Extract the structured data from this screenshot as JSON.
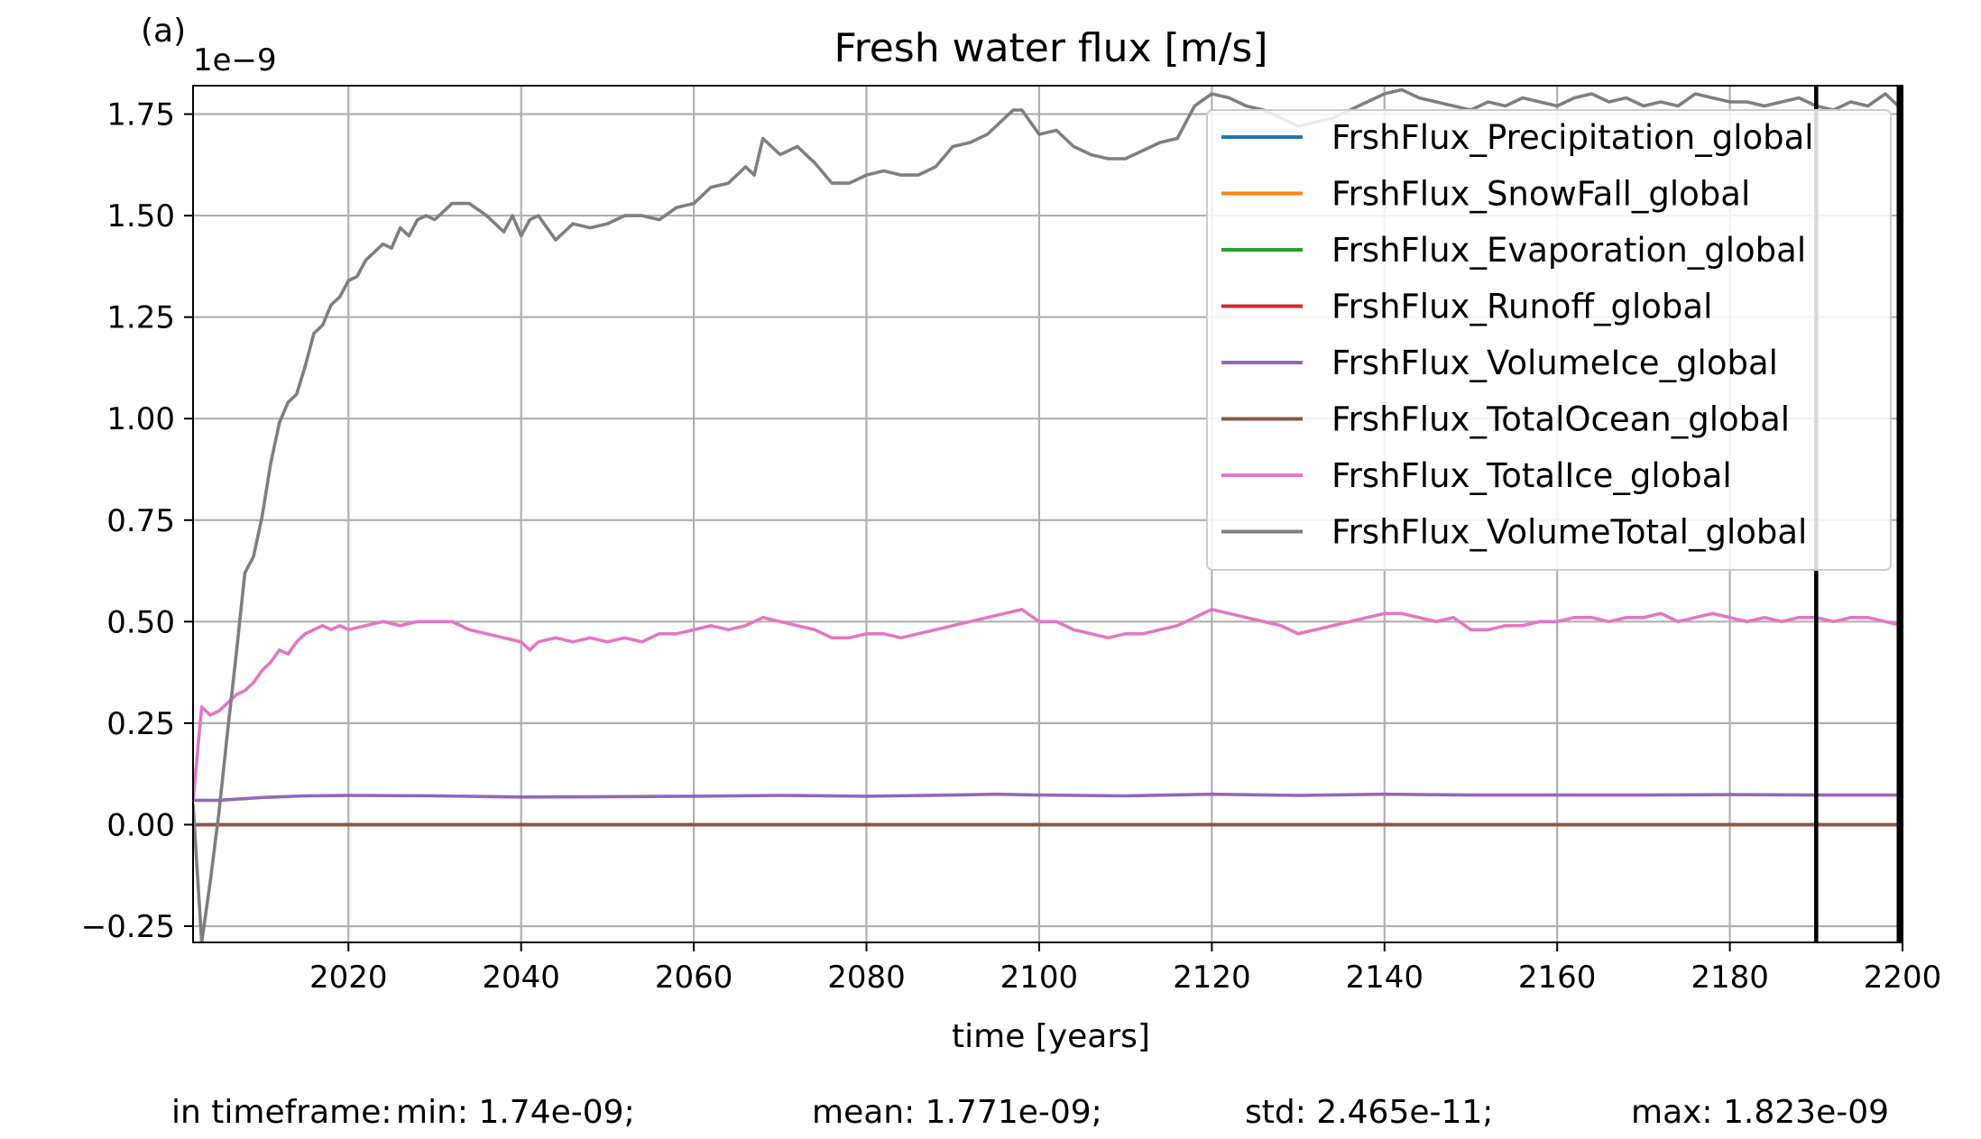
{
  "chart_data": {
    "type": "line",
    "panel_label": "(a)",
    "title": "Fresh water flux [m/s]",
    "xlabel": "time [years]",
    "ylabel": "",
    "y_offset_label": "1e−9",
    "xlim": [
      2002,
      2200
    ],
    "ylim": [
      -0.29,
      1.82
    ],
    "x_ticks": [
      2020,
      2040,
      2060,
      2080,
      2100,
      2120,
      2140,
      2160,
      2180,
      2200
    ],
    "y_ticks": [
      -0.25,
      0.0,
      0.25,
      0.5,
      0.75,
      1.0,
      1.25,
      1.5,
      1.75
    ],
    "y_tick_labels": [
      "−0.25",
      "0.00",
      "0.25",
      "0.50",
      "0.75",
      "1.00",
      "1.25",
      "1.50",
      "1.75"
    ],
    "grid": true,
    "legend_position": "upper right",
    "vertical_lines": [
      2190,
      2200
    ],
    "series": [
      {
        "name": "FrshFlux_Precipitation_global",
        "color": "#1f77b4",
        "x": [
          2002,
          2200
        ],
        "y": [
          0,
          0
        ]
      },
      {
        "name": "FrshFlux_SnowFall_global",
        "color": "#ff7f0e",
        "x": [
          2002,
          2200
        ],
        "y": [
          0,
          0
        ]
      },
      {
        "name": "FrshFlux_Evaporation_global",
        "color": "#2ca02c",
        "x": [
          2002,
          2200
        ],
        "y": [
          0,
          0
        ]
      },
      {
        "name": "FrshFlux_Runoff_global",
        "color": "#d62728",
        "x": [
          2002,
          2200
        ],
        "y": [
          0,
          0
        ]
      },
      {
        "name": "FrshFlux_VolumeIce_global",
        "color": "#9467bd",
        "x": [
          2002,
          2005,
          2010,
          2015,
          2020,
          2030,
          2040,
          2050,
          2060,
          2070,
          2080,
          2090,
          2095,
          2100,
          2110,
          2120,
          2130,
          2140,
          2150,
          2160,
          2170,
          2180,
          2190,
          2200
        ],
        "y": [
          0.06,
          0.06,
          0.067,
          0.071,
          0.072,
          0.071,
          0.068,
          0.069,
          0.07,
          0.072,
          0.07,
          0.073,
          0.075,
          0.073,
          0.071,
          0.075,
          0.072,
          0.075,
          0.073,
          0.073,
          0.073,
          0.074,
          0.073,
          0.073
        ]
      },
      {
        "name": "FrshFlux_TotalOcean_global",
        "color": "#8c564b",
        "x": [
          2002,
          2200
        ],
        "y": [
          0,
          0
        ]
      },
      {
        "name": "FrshFlux_TotalIce_global",
        "color": "#e377c2",
        "x": [
          2002,
          2003,
          2004,
          2005,
          2006,
          2007,
          2008,
          2009,
          2010,
          2011,
          2012,
          2013,
          2014,
          2015,
          2016,
          2017,
          2018,
          2019,
          2020,
          2022,
          2024,
          2026,
          2028,
          2030,
          2032,
          2034,
          2036,
          2038,
          2040,
          2041,
          2042,
          2044,
          2046,
          2048,
          2050,
          2052,
          2054,
          2056,
          2058,
          2060,
          2062,
          2064,
          2066,
          2068,
          2070,
          2072,
          2074,
          2076,
          2078,
          2080,
          2082,
          2084,
          2086,
          2088,
          2090,
          2092,
          2094,
          2096,
          2098,
          2100,
          2102,
          2104,
          2106,
          2108,
          2110,
          2112,
          2114,
          2116,
          2118,
          2120,
          2122,
          2124,
          2126,
          2128,
          2130,
          2132,
          2134,
          2136,
          2138,
          2140,
          2142,
          2144,
          2146,
          2148,
          2150,
          2152,
          2154,
          2156,
          2158,
          2160,
          2162,
          2164,
          2166,
          2168,
          2170,
          2172,
          2174,
          2176,
          2178,
          2180,
          2182,
          2184,
          2186,
          2188,
          2190,
          2192,
          2194,
          2196,
          2198,
          2200
        ],
        "y": [
          0.06,
          0.29,
          0.27,
          0.28,
          0.3,
          0.32,
          0.33,
          0.35,
          0.38,
          0.4,
          0.43,
          0.42,
          0.45,
          0.47,
          0.48,
          0.49,
          0.48,
          0.49,
          0.48,
          0.49,
          0.5,
          0.49,
          0.5,
          0.5,
          0.5,
          0.48,
          0.47,
          0.46,
          0.45,
          0.43,
          0.45,
          0.46,
          0.45,
          0.46,
          0.45,
          0.46,
          0.45,
          0.47,
          0.47,
          0.48,
          0.49,
          0.48,
          0.49,
          0.51,
          0.5,
          0.49,
          0.48,
          0.46,
          0.46,
          0.47,
          0.47,
          0.46,
          0.47,
          0.48,
          0.49,
          0.5,
          0.51,
          0.52,
          0.53,
          0.5,
          0.5,
          0.48,
          0.47,
          0.46,
          0.47,
          0.47,
          0.48,
          0.49,
          0.51,
          0.53,
          0.52,
          0.51,
          0.5,
          0.49,
          0.47,
          0.48,
          0.49,
          0.5,
          0.51,
          0.52,
          0.52,
          0.51,
          0.5,
          0.51,
          0.48,
          0.48,
          0.49,
          0.49,
          0.5,
          0.5,
          0.51,
          0.51,
          0.5,
          0.51,
          0.51,
          0.52,
          0.5,
          0.51,
          0.52,
          0.51,
          0.5,
          0.51,
          0.5,
          0.51,
          0.51,
          0.5,
          0.51,
          0.51,
          0.5,
          0.49
        ]
      },
      {
        "name": "FrshFlux_VolumeTotal_global",
        "color": "#7f7f7f",
        "x": [
          2002,
          2003,
          2004,
          2005,
          2006,
          2007,
          2008,
          2009,
          2010,
          2011,
          2012,
          2013,
          2014,
          2015,
          2016,
          2017,
          2018,
          2019,
          2020,
          2021,
          2022,
          2023,
          2024,
          2025,
          2026,
          2027,
          2028,
          2029,
          2030,
          2032,
          2034,
          2036,
          2038,
          2039,
          2040,
          2041,
          2042,
          2044,
          2046,
          2048,
          2050,
          2052,
          2054,
          2056,
          2058,
          2060,
          2062,
          2064,
          2066,
          2067,
          2068,
          2070,
          2072,
          2074,
          2076,
          2078,
          2080,
          2082,
          2084,
          2086,
          2088,
          2090,
          2092,
          2094,
          2096,
          2097,
          2098,
          2100,
          2102,
          2104,
          2106,
          2108,
          2110,
          2112,
          2114,
          2116,
          2118,
          2120,
          2122,
          2124,
          2126,
          2128,
          2130,
          2132,
          2134,
          2136,
          2138,
          2140,
          2142,
          2144,
          2146,
          2148,
          2150,
          2152,
          2154,
          2156,
          2158,
          2160,
          2162,
          2164,
          2166,
          2168,
          2170,
          2172,
          2174,
          2176,
          2178,
          2180,
          2182,
          2184,
          2186,
          2188,
          2190,
          2192,
          2194,
          2196,
          2198,
          2200
        ],
        "y": [
          0.05,
          -0.29,
          -0.14,
          0.03,
          0.23,
          0.42,
          0.62,
          0.66,
          0.76,
          0.89,
          0.99,
          1.04,
          1.06,
          1.13,
          1.21,
          1.23,
          1.28,
          1.3,
          1.34,
          1.35,
          1.39,
          1.41,
          1.43,
          1.42,
          1.47,
          1.45,
          1.49,
          1.5,
          1.49,
          1.53,
          1.53,
          1.5,
          1.46,
          1.5,
          1.45,
          1.49,
          1.5,
          1.44,
          1.48,
          1.47,
          1.48,
          1.5,
          1.5,
          1.49,
          1.52,
          1.53,
          1.57,
          1.58,
          1.62,
          1.6,
          1.69,
          1.65,
          1.67,
          1.63,
          1.58,
          1.58,
          1.6,
          1.61,
          1.6,
          1.6,
          1.62,
          1.67,
          1.68,
          1.7,
          1.74,
          1.76,
          1.76,
          1.7,
          1.71,
          1.67,
          1.65,
          1.64,
          1.64,
          1.66,
          1.68,
          1.69,
          1.77,
          1.8,
          1.79,
          1.77,
          1.76,
          1.74,
          1.72,
          1.73,
          1.74,
          1.76,
          1.78,
          1.8,
          1.81,
          1.79,
          1.78,
          1.77,
          1.76,
          1.78,
          1.77,
          1.79,
          1.78,
          1.77,
          1.79,
          1.8,
          1.78,
          1.79,
          1.77,
          1.78,
          1.77,
          1.8,
          1.79,
          1.78,
          1.78,
          1.77,
          1.78,
          1.79,
          1.77,
          1.76,
          1.78,
          1.77,
          1.8,
          1.76
        ]
      }
    ],
    "stats": {
      "prefix": "in timeframe:",
      "min": "min: 1.74e-09;",
      "mean": "mean: 1.771e-09;",
      "std": "std: 2.465e-11;",
      "max": "max: 1.823e-09"
    }
  }
}
